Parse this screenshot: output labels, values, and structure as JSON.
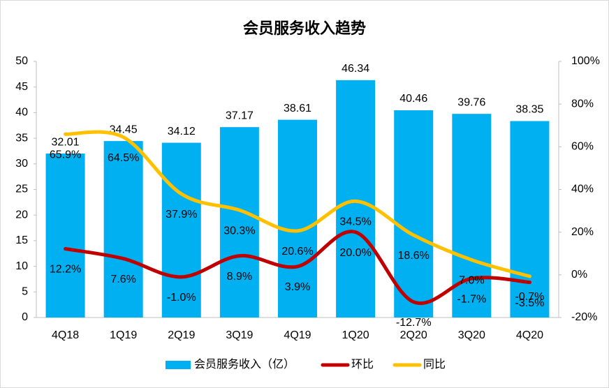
{
  "chart_data": {
    "type": "bar",
    "title": "会员服务收入趋势",
    "categories": [
      "4Q18",
      "1Q19",
      "2Q19",
      "3Q19",
      "4Q19",
      "1Q20",
      "2Q20",
      "3Q20",
      "4Q20"
    ],
    "series": [
      {
        "name": "会员服务收入（亿）",
        "type": "bar",
        "color": "#00b0f0",
        "values": [
          32.01,
          34.45,
          34.12,
          37.17,
          38.61,
          46.34,
          40.46,
          39.76,
          38.35
        ]
      },
      {
        "name": "环比",
        "type": "line",
        "axis": "y2",
        "color": "#c00000",
        "values": [
          12.2,
          7.6,
          -1.0,
          8.9,
          3.9,
          20.0,
          -12.7,
          -1.7,
          -3.5
        ],
        "value_labels": [
          "12.2%",
          "7.6%",
          "-1.0%",
          "8.9%",
          "3.9%",
          "20.0%",
          "-12.7%",
          "-1.7%",
          "-3.5%"
        ]
      },
      {
        "name": "同比",
        "type": "line",
        "axis": "y2",
        "color": "#ffc000",
        "values": [
          65.9,
          64.5,
          37.9,
          30.3,
          20.6,
          34.5,
          18.6,
          7.0,
          -0.7
        ],
        "value_labels": [
          "65.9%",
          "64.5%",
          "37.9%",
          "30.3%",
          "20.6%",
          "34.5%",
          "18.6%",
          "7.0%",
          "-0.7%"
        ]
      }
    ],
    "ylim": [
      0,
      50
    ],
    "yticks": [
      0,
      5,
      10,
      15,
      20,
      25,
      30,
      35,
      40,
      45,
      50
    ],
    "y2lim": [
      -20,
      100
    ],
    "y2ticks": [
      {
        "value": -20,
        "label": "-20%"
      },
      {
        "value": 0,
        "label": "0%"
      },
      {
        "value": 20,
        "label": "20%"
      },
      {
        "value": 40,
        "label": "40%"
      },
      {
        "value": 60,
        "label": "60%"
      },
      {
        "value": 80,
        "label": "80%"
      },
      {
        "value": 100,
        "label": "100%"
      }
    ],
    "legend": "bottom",
    "grid": false
  }
}
